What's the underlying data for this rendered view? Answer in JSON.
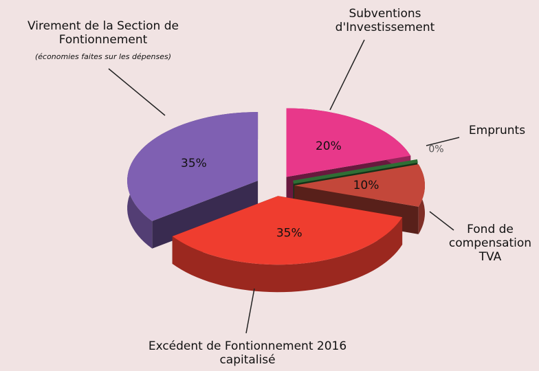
{
  "chart_data": {
    "type": "pie3d",
    "categories": [
      "Subventions d'Investissement",
      "Emprunts",
      "Fond de compensation TVA",
      "Excédent de Fontionnement 2016 capitalisé",
      "Virement de la Section de Fontionnement"
    ],
    "values": [
      20,
      0,
      10,
      35,
      35
    ],
    "value_labels": [
      "20%",
      "0%",
      "10%",
      "35%",
      "35%"
    ],
    "colors": [
      "#e8388a",
      "#2f6e35",
      "#c3473a",
      "#ef3d2f",
      "#7f60b2"
    ],
    "annotations": [
      "(économies faites sur les dépenses)"
    ]
  }
}
